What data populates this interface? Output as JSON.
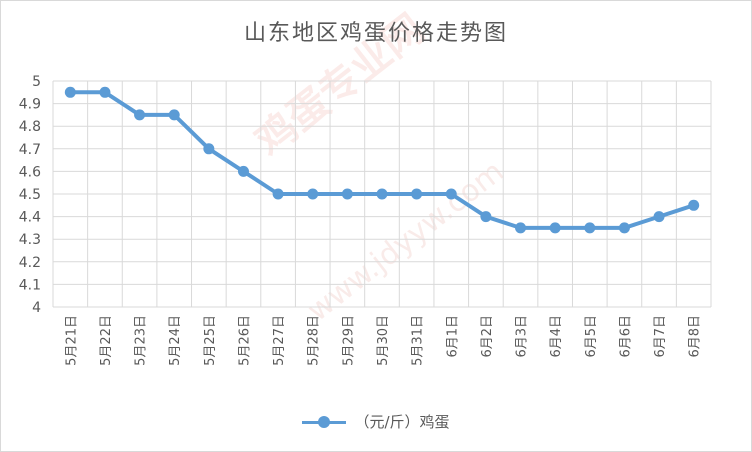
{
  "watermark": {
    "text": "鸡蛋专业网",
    "url": "www.jdyyw.com"
  },
  "chart_data": {
    "type": "line",
    "title": "山东地区鸡蛋价格走势图",
    "xlabel": "",
    "ylabel": "",
    "ylim": [
      4,
      5
    ],
    "yticks": [
      "4",
      "4.1",
      "4.2",
      "4.3",
      "4.4",
      "4.5",
      "4.6",
      "4.7",
      "4.8",
      "4.9",
      "5"
    ],
    "categories": [
      "5月21日",
      "5月22日",
      "5月23日",
      "5月24日",
      "5月25日",
      "5月26日",
      "5月27日",
      "5月28日",
      "5月29日",
      "5月30日",
      "5月31日",
      "6月1日",
      "6月2日",
      "6月3日",
      "6月4日",
      "6月5日",
      "6月6日",
      "6月7日",
      "6月8日"
    ],
    "series": [
      {
        "name": "（元/斤）鸡蛋",
        "values": [
          4.95,
          4.95,
          4.85,
          4.85,
          4.7,
          4.6,
          4.5,
          4.5,
          4.5,
          4.5,
          4.5,
          4.5,
          4.4,
          4.35,
          4.35,
          4.35,
          4.35,
          4.4,
          4.45
        ],
        "color": "#5b9bd5"
      }
    ],
    "grid": true,
    "gridColor": "#d9d9d9",
    "legend": "bottom"
  }
}
